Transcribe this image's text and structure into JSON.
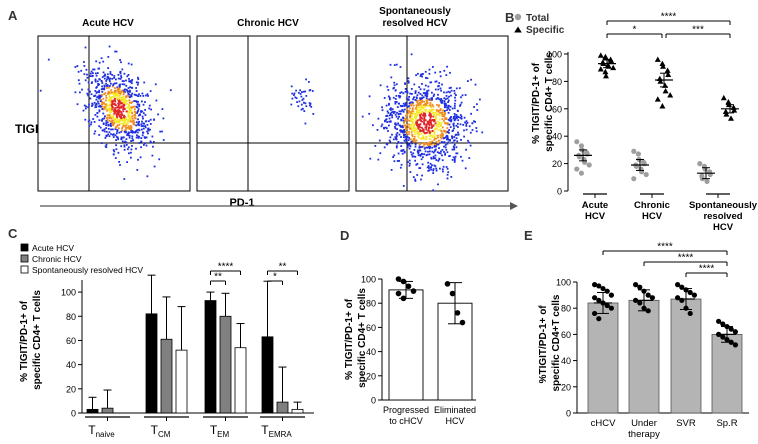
{
  "panels": {
    "A": "A",
    "B": "B",
    "C": "C",
    "D": "D",
    "E": "E"
  },
  "colors": {
    "black": "#000000",
    "grey": "#808080",
    "white": "#ffffff",
    "barE": "#b4b4b4",
    "lightGrey": "#9e9e9e",
    "blue": "#1f2fe0",
    "heatRed": "#e0262a",
    "heatYellow": "#f5e82a",
    "heatOrange": "#f08a1c"
  },
  "flow": {
    "titles": [
      "Acute HCV",
      "Chronic HCV",
      "Spontaneously resolved HCV"
    ],
    "ylabel": "TIGIT",
    "xlabel": "PD-1"
  },
  "chart_data": [
    {
      "id": "B",
      "type": "scatter",
      "ylabel": "% TIGIT/PD-1+ of specific CD4+ T cells",
      "ylim": [
        0,
        100
      ],
      "yticks": [
        0,
        20,
        40,
        60,
        80,
        100
      ],
      "categories": [
        "Acute HCV",
        "Chronic HCV",
        "Spontaneously resolved HCV"
      ],
      "legend": [
        "Total",
        "Specific"
      ],
      "series": [
        {
          "name": "Total",
          "marker": "circle",
          "color": "#9e9e9e",
          "mean": [
            26,
            19,
            13
          ],
          "sem": [
            4,
            4,
            4
          ],
          "points": [
            [
              36,
              33,
              30,
              28,
              27,
              26,
              25,
              23,
              21,
              19,
              16,
              13
            ],
            [
              29,
              27,
              23,
              21,
              20,
              19,
              18,
              16,
              14,
              12,
              9
            ],
            [
              20,
              18,
              16,
              14,
              12,
              11,
              9,
              7
            ]
          ]
        },
        {
          "name": "Specific",
          "marker": "triangle",
          "color": "#000000",
          "mean": [
            93,
            81,
            60
          ],
          "sem": [
            3,
            5,
            3
          ],
          "points": [
            [
              99,
              98,
              97,
              96,
              95,
              94,
              93,
              92,
              91,
              90,
              89,
              87,
              84
            ],
            [
              96,
              93,
              91,
              88,
              85,
              82,
              80,
              77,
              73,
              70,
              67,
              62
            ],
            [
              68,
              65,
              63,
              61,
              59,
              58,
              56,
              53
            ]
          ]
        }
      ],
      "significance": [
        {
          "from": 0,
          "to": 2,
          "label": "****"
        },
        {
          "from": 0,
          "to": 1,
          "label": "*"
        },
        {
          "from": 1,
          "to": 2,
          "label": "***"
        }
      ]
    },
    {
      "id": "C",
      "type": "bar",
      "ylabel": "% TIGIT/PD-1+ of specific CD4+ T cells",
      "ylim": [
        0,
        110
      ],
      "yticks": [
        0,
        20,
        40,
        60,
        80,
        100
      ],
      "categories": [
        {
          "main": "T",
          "sub": "naive"
        },
        {
          "main": "T",
          "sub": "CM"
        },
        {
          "main": "T",
          "sub": "EM"
        },
        {
          "main": "T",
          "sub": "EMRA"
        }
      ],
      "series": [
        {
          "name": "Acute HCV",
          "color": "#000000",
          "values": [
            3,
            82,
            93,
            63
          ],
          "errors": [
            10,
            32,
            7,
            46
          ]
        },
        {
          "name": "Chronic HCV",
          "color": "#808080",
          "values": [
            4,
            61,
            80,
            9
          ],
          "errors": [
            15,
            35,
            19,
            29
          ]
        },
        {
          "name": "Spontaneously resolved HCV",
          "color": "#ffffff",
          "values": [
            0,
            52,
            54,
            3
          ],
          "errors": [
            0,
            36,
            20,
            6
          ]
        }
      ],
      "significance": [
        {
          "cat": 2,
          "from": 0,
          "to": 2,
          "label": "****"
        },
        {
          "cat": 2,
          "from": 0,
          "to": 1,
          "label": "**"
        },
        {
          "cat": 3,
          "from": 0,
          "to": 2,
          "label": "**"
        },
        {
          "cat": 3,
          "from": 0,
          "to": 1,
          "label": "*"
        }
      ]
    },
    {
      "id": "D",
      "type": "bar",
      "ylabel": "% TIGIT/PD-1+ of specific CD4+ T cells",
      "ylim": [
        0,
        100
      ],
      "yticks": [
        0,
        20,
        40,
        60,
        80,
        100
      ],
      "categories": [
        [
          "Progressed",
          "to cHCV"
        ],
        [
          "Eliminated",
          "HCV"
        ]
      ],
      "values": [
        91,
        80
      ],
      "errors": [
        7,
        17
      ],
      "points": [
        [
          100,
          98,
          94,
          90,
          88,
          84
        ],
        [
          96,
          88,
          72,
          64
        ]
      ]
    },
    {
      "id": "E",
      "type": "bar",
      "ylabel": "%TIGIT/PD-1+ of specific CD4+T cells",
      "ylim": [
        0,
        100
      ],
      "yticks": [
        0,
        20,
        40,
        60,
        80,
        100
      ],
      "categories": [
        [
          "cHCV"
        ],
        [
          "Under",
          "therapy"
        ],
        [
          "SVR"
        ],
        [
          "Sp.R"
        ]
      ],
      "values": [
        84,
        86,
        87,
        60
      ],
      "errors": [
        8,
        8,
        8,
        6
      ],
      "points": [
        [
          98,
          97,
          95,
          93,
          90,
          88,
          86,
          84,
          82,
          80,
          76,
          72
        ],
        [
          98,
          96,
          93,
          90,
          88,
          86,
          84,
          80,
          78
        ],
        [
          98,
          96,
          94,
          92,
          90,
          88,
          86,
          80,
          76
        ],
        [
          70,
          68,
          66,
          64,
          62,
          60,
          58,
          56,
          54,
          52
        ]
      ],
      "significance": [
        {
          "from": 0,
          "to": 3,
          "label": "****"
        },
        {
          "from": 1,
          "to": 3,
          "label": "****"
        },
        {
          "from": 2,
          "to": 3,
          "label": "****"
        }
      ]
    }
  ]
}
